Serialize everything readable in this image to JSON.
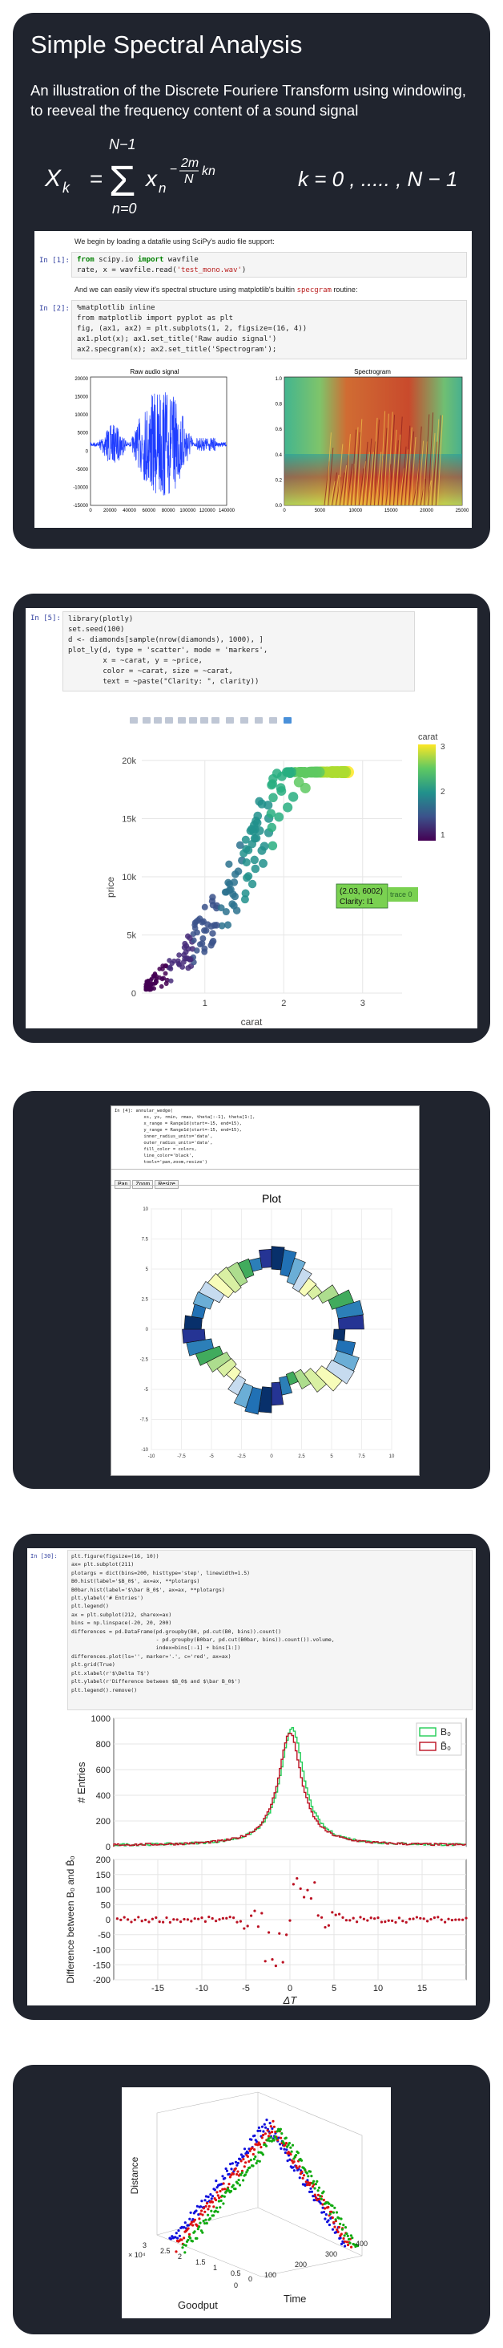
{
  "card1": {
    "title": "Simple Spectral Analysis",
    "subtitle": "An illustration of the Discrete Fouriere Transform using windowing, to reeveal the frequency content of a sound signal",
    "formula": {
      "lhs": "X",
      "lhs_sub": "k",
      "equals": "=",
      "sigma": "Σ",
      "upper": "N−1",
      "lower": "n=0",
      "term": "x",
      "term_sub": "n",
      "exp_minus": "−",
      "exp_num": "2m",
      "exp_den": "N",
      "exp_tail": "kn",
      "range": "k  =  0 ,  ..... ,  N − 1"
    },
    "notebook": {
      "intro": "We begin by loading a datafile using SciPy's audio file support:",
      "cell1_prompt": "In [1]:",
      "cell1_line1_kw1": "from",
      "cell1_line1_mid": " scipy.io ",
      "cell1_line1_kw2": "import",
      "cell1_line1_end": " wavfile",
      "cell1_line2_start": "rate, x = wavfile.read(",
      "cell1_line2_str": "'test_mono.wav'",
      "cell1_line2_end": ")",
      "mid_text": "And we can easily view it's spectral structure using matplotlib's builtin ",
      "mid_code": "specgram",
      "mid_text_end": " routine:",
      "cell2_prompt": "In [2]:",
      "cell2_lines": [
        "%matplotlib inline",
        "from matplotlib import pyplot as plt",
        "fig, (ax1, ax2) = plt.subplots(1, 2, figsize=(16, 4))",
        "ax1.plot(x); ax1.set_title('Raw audio signal')",
        "ax2.specgram(x); ax2.set_title('Spectrogram');"
      ],
      "plot1_title": "Raw audio signal",
      "plot1_yticks": [
        "20000",
        "15000",
        "10000",
        "5000",
        "0",
        "-5000",
        "-10000",
        "-15000"
      ],
      "plot1_xticks": [
        "0",
        "20000",
        "40000",
        "60000",
        "80000",
        "100000",
        "120000",
        "140000"
      ],
      "plot2_title": "Spectrogram",
      "plot2_yticks": [
        "1.0",
        "0.8",
        "0.6",
        "0.4",
        "0.2",
        "0.0"
      ],
      "plot2_xticks": [
        "0",
        "5000",
        "10000",
        "15000",
        "20000",
        "25000"
      ]
    }
  },
  "card2": {
    "prompt": "In [5]:",
    "code_lines": [
      "library(plotly)",
      "set.seed(100)",
      "d <- diamonds[sample(nrow(diamonds), 1000), ]",
      "plot_ly(d, type = 'scatter', mode = 'markers',",
      "        x = ~carat, y = ~price,",
      "        color = ~carat, size = ~carat,",
      "        text = ~paste(\"Clarity: \", clarity))"
    ],
    "chart": {
      "yticks": [
        "20k",
        "15k",
        "10k",
        "5k",
        "0"
      ],
      "xticks": [
        "1",
        "2",
        "3"
      ],
      "xlabel": "carat",
      "ylabel": "price",
      "colorbar_title": "carat",
      "colorbar_ticks": [
        "3",
        "2",
        "1"
      ],
      "tooltip_line1": "(2.03, 6002)",
      "tooltip_line2": "Clarity:  I1",
      "tooltip_trace": "trace 0"
    }
  },
  "card3": {
    "code_lines": [
      "In [4]: annular_wedge(",
      "           xs, ys, rmin, rmax, theta[:-1], theta[1:],",
      "           x_range = Range1d(start=-15, end=15),",
      "           y_range = Range1d(start=-15, end=15),",
      "           inner_radius_units='data',",
      "           outer_radius_units='data',",
      "           fill_color = colors,",
      "           line_color='black',",
      "           tools='pan,zoom,resize')"
    ],
    "buttons": [
      "Pan",
      "Zoom",
      "Resize"
    ],
    "plot_title": "Plot",
    "yticks": [
      "10",
      "7.5",
      "5",
      "2.5",
      "0",
      "-2.5",
      "-5",
      "-7.5",
      "-10"
    ],
    "xticks": [
      "-10",
      "-7.5",
      "-5",
      "-2.5",
      "0",
      "2.5",
      "5",
      "7.5",
      "10"
    ]
  },
  "card4": {
    "prompt": "In [30]:",
    "code_lines": [
      "plt.figure(figsize=(16, 10))",
      "",
      "ax= plt.subplot(211)",
      "plotargs = dict(bins=200, histtype='step', linewidth=1.5)",
      "B0.hist(label='$B_0$', ax=ax, **plotargs)",
      "B0bar.hist(label='$\\bar B_0$', ax=ax, **plotargs)",
      "plt.ylabel('# Entries')",
      "plt.legend()",
      "",
      "ax = plt.subplot(212, sharex=ax)",
      "bins = np.linspace(-20, 20, 200)",
      "differences = pd.DataFrame(pd.groupby(B0, pd.cut(B0, bins)).count()",
      "                           - pd.groupby(B0bar, pd.cut(B0bar, bins)).count()).volume,",
      "                           index=bins[:-1] + bins[1:])",
      "differences.plot(ls='', marker='.', c='red', ax=ax)",
      "plt.grid(True)",
      "plt.xlabel(r'$\\Delta T$')",
      "plt.ylabel(r'Difference between $B_0$ and $\\bar B_0$')",
      "plt.legend().remove()"
    ],
    "top_yticks": [
      "1000",
      "800",
      "600",
      "400",
      "200",
      "0"
    ],
    "top_ylabel": "# Entries",
    "legend": [
      "B₀",
      "B̄₀"
    ],
    "bottom_yticks": [
      "200",
      "150",
      "100",
      "50",
      "0",
      "-50",
      "-100",
      "-150",
      "-200"
    ],
    "bottom_ylabel": "Difference between B₀ and B̄₀",
    "xticks": [
      "-15",
      "-10",
      "-5",
      "0",
      "5",
      "10",
      "15"
    ],
    "xlabel": "ΔT"
  },
  "card5": {
    "zlabel": "Distance",
    "xlabel": "Goodput",
    "ylabel": "Time",
    "exp_label": "× 10⁴",
    "xticks": [
      "3",
      "2.5",
      "2",
      "1.5",
      "1",
      "0.5",
      "0"
    ],
    "yticks": [
      "0",
      "100",
      "200",
      "300",
      "400"
    ]
  },
  "colors": {
    "card_bg": "#20242e",
    "prompt": "#303f9f",
    "audio": "#1f3dff",
    "hist_green": "#22cc55",
    "hist_red": "#bb1122"
  }
}
